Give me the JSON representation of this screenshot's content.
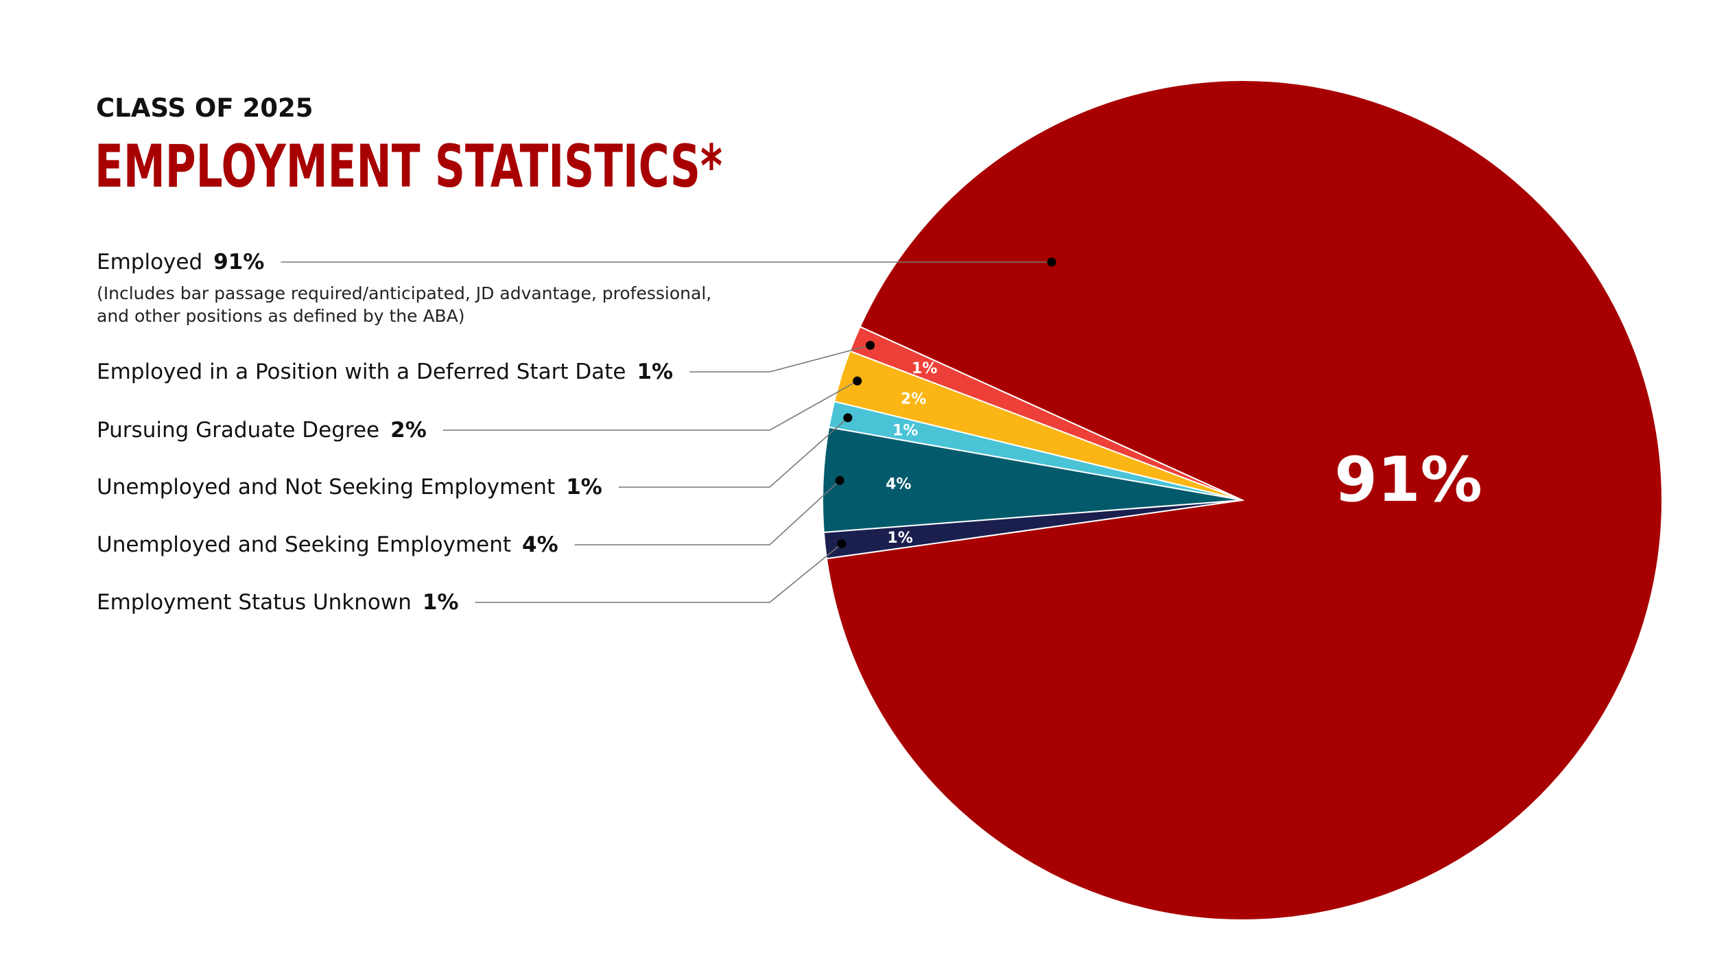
{
  "chart_data": {
    "type": "pie",
    "subtitle": "CLASS OF 2025",
    "title": "EMPLOYMENT STATISTICS*",
    "note": "(Includes bar passage required/anticipated, JD advantage, professional, and other positions as defined by the ABA)",
    "categories": [
      "Employed",
      "Employed in a Position with a Deferred Start Date",
      "Pursuing Graduate Degree",
      "Unemployed and Not Seeking Employment",
      "Unemployed and Seeking Employment",
      "Employment Status Unknown"
    ],
    "values": [
      91,
      1,
      2,
      1,
      4,
      1
    ],
    "value_labels": [
      "91%",
      "1%",
      "2%",
      "1%",
      "4%",
      "1%"
    ],
    "colors": [
      "#a80000",
      "#ee4038",
      "#fbb615",
      "#4ac3d6",
      "#035a6b",
      "#1b1f4e"
    ]
  }
}
